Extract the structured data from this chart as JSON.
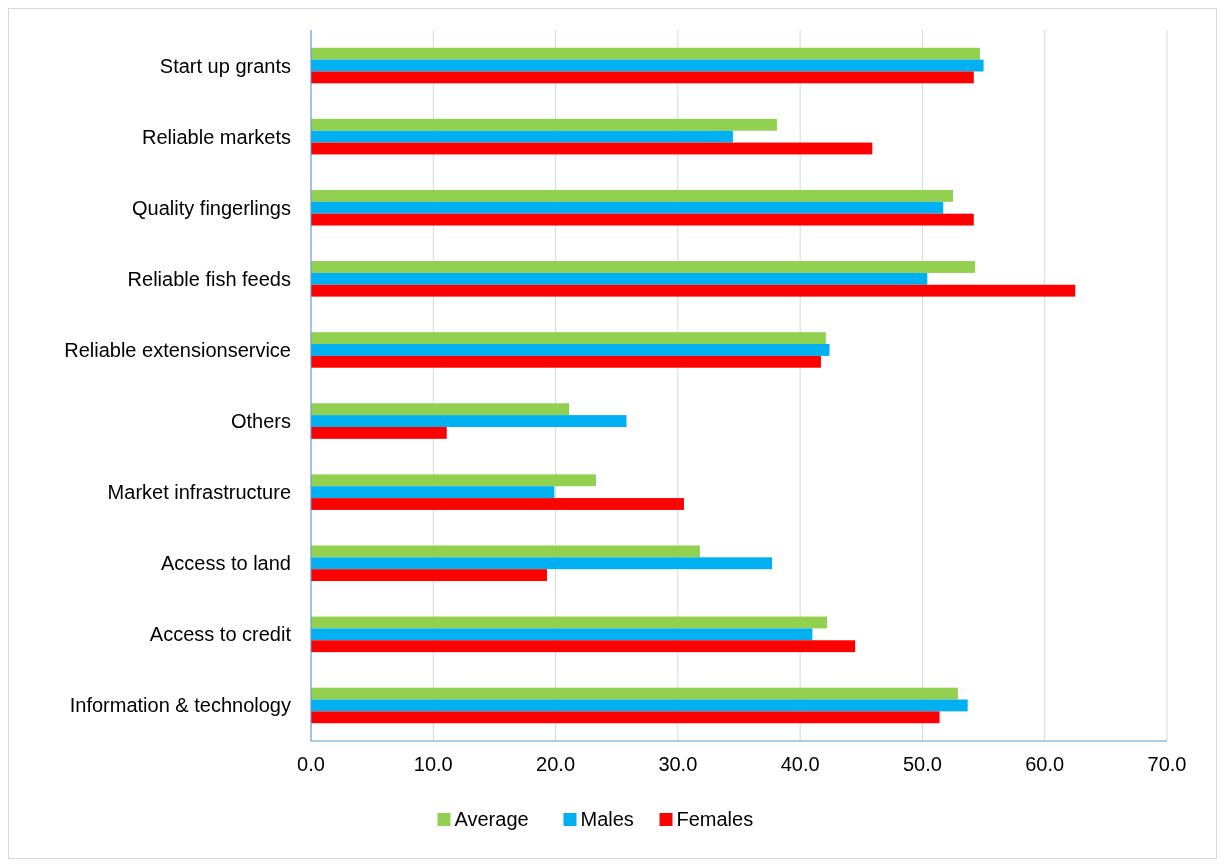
{
  "chart_data": {
    "type": "bar",
    "orientation": "horizontal",
    "categories": [
      "Start up grants",
      "Reliable markets",
      "Quality fingerlings",
      "Reliable fish feeds",
      "Reliable extensionservice",
      "Others",
      "Market infrastructure",
      "Access to land",
      "Access to credit",
      "Information & technology"
    ],
    "series": [
      {
        "name": "Average",
        "color": "#92d050",
        "values": [
          54.7,
          38.1,
          52.5,
          54.3,
          42.1,
          21.1,
          23.3,
          31.8,
          42.2,
          52.9
        ]
      },
      {
        "name": "Males",
        "color": "#00b0f0",
        "values": [
          55.0,
          34.5,
          51.7,
          50.4,
          42.4,
          25.8,
          19.9,
          37.7,
          41.0,
          53.7
        ]
      },
      {
        "name": "Females",
        "color": "#ff0000",
        "values": [
          54.2,
          45.9,
          54.2,
          62.5,
          41.7,
          11.1,
          30.5,
          19.3,
          44.5,
          51.4
        ]
      }
    ],
    "xlim": [
      0,
      70
    ],
    "xticks": [
      {
        "value": 0,
        "label": "0.0"
      },
      {
        "value": 10,
        "label": "10.0"
      },
      {
        "value": 20,
        "label": "20.0"
      },
      {
        "value": 30,
        "label": "30.0"
      },
      {
        "value": 40,
        "label": "40.0"
      },
      {
        "value": 50,
        "label": "50.0"
      },
      {
        "value": 60,
        "label": "60.0"
      },
      {
        "value": 70,
        "label": "70.0"
      }
    ],
    "grid": "x",
    "legend": "bottom"
  }
}
